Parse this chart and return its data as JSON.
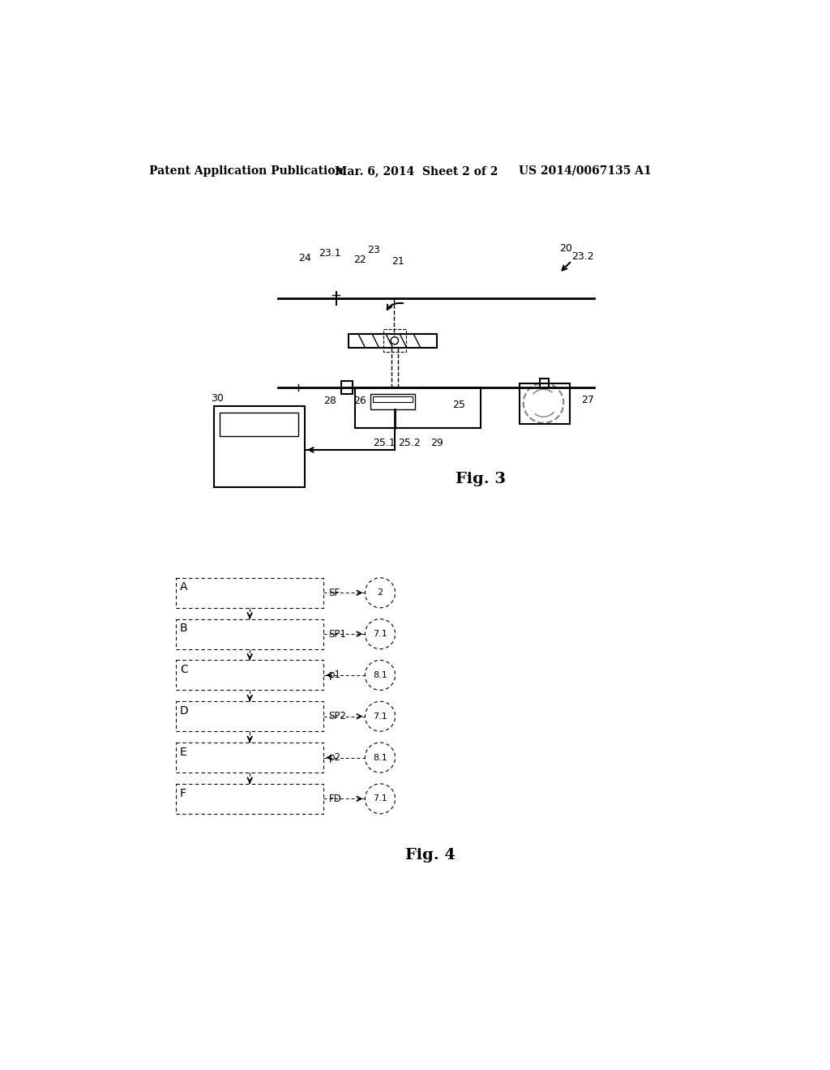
{
  "bg_color": "#ffffff",
  "header_text": "Patent Application Publication",
  "header_date": "Mar. 6, 2014  Sheet 2 of 2",
  "header_patent": "US 2014/0067135 A1",
  "fig3_label": "Fig. 3",
  "fig4_label": "Fig. 4",
  "fig4_rows": [
    "A",
    "B",
    "C",
    "D",
    "E",
    "F"
  ],
  "fig4_signals": [
    "SF",
    "SP1",
    "p1",
    "SP2",
    "p2",
    "FD"
  ],
  "fig4_circles": [
    "2",
    "7.1",
    "8.1",
    "7.1",
    "8.1",
    "7.1"
  ],
  "fig4_arrow_out": [
    true,
    true,
    false,
    true,
    false,
    true
  ]
}
